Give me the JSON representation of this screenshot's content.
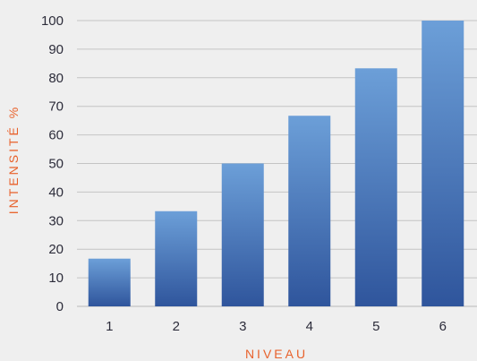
{
  "chart_data": {
    "type": "bar",
    "categories": [
      "1",
      "2",
      "3",
      "4",
      "5",
      "6"
    ],
    "values": [
      16.7,
      33.3,
      50,
      66.7,
      83.3,
      100
    ],
    "title": "",
    "xlabel": "NIVEAU",
    "ylabel": "INTENSITÉ %",
    "ylim": [
      0,
      100
    ],
    "yticks": [
      0,
      10,
      20,
      30,
      40,
      50,
      60,
      70,
      80,
      90,
      100
    ],
    "grid": true,
    "colors": {
      "bar_top": "#6c9fd8",
      "bar_bottom": "#2f559c",
      "axis_title": "#e8622c",
      "grid": "#c4c4c4",
      "tick_text": "#2c2c3a"
    }
  }
}
